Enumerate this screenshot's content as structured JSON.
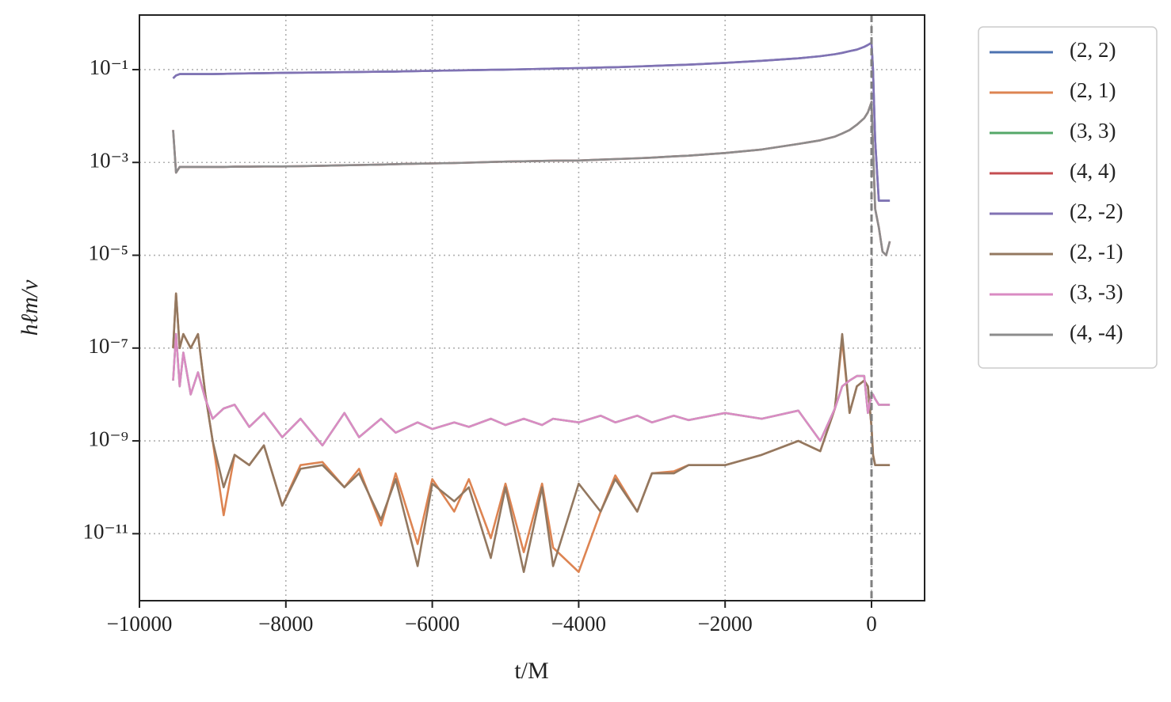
{
  "chart_data": {
    "type": "line",
    "xlabel": "t/M",
    "ylabel": "hℓm/ν",
    "x": [
      -9540,
      -9500,
      -9450,
      -9400,
      -9300,
      -9200,
      -9100,
      -9000,
      -8850,
      -8700,
      -8500,
      -8300,
      -8050,
      -7800,
      -7500,
      -7200,
      -7000,
      -6700,
      -6500,
      -6200,
      -6000,
      -5700,
      -5500,
      -5200,
      -5000,
      -4750,
      -4500,
      -4350,
      -4000,
      -3700,
      -3500,
      -3200,
      -3000,
      -2700,
      -2500,
      -2000,
      -1500,
      -1000,
      -700,
      -500,
      -400,
      -300,
      -200,
      -100,
      -50,
      0,
      20,
      50,
      100,
      150,
      200,
      250
    ],
    "series": [
      {
        "name": "(2, 2)",
        "color": "#4c72b0",
        "values": [
          0.065,
          0.075,
          0.08,
          0.08,
          0.08,
          0.08,
          0.08,
          0.08,
          0.081,
          0.082,
          0.083,
          0.084,
          0.085,
          0.086,
          0.087,
          0.088,
          0.089,
          0.09,
          0.091,
          0.093,
          0.094,
          0.096,
          0.097,
          0.099,
          0.1,
          0.102,
          0.104,
          0.105,
          0.108,
          0.111,
          0.113,
          0.117,
          0.12,
          0.125,
          0.128,
          0.14,
          0.155,
          0.175,
          0.195,
          0.215,
          0.23,
          0.25,
          0.27,
          0.31,
          0.34,
          0.38,
          0.1,
          0.003,
          0.00015,
          0.00015,
          0.00015,
          0.00015
        ]
      },
      {
        "name": "(2, 1)",
        "color": "#dd8452",
        "values": [
          1e-07,
          1.5e-06,
          1e-07,
          2e-07,
          1e-07,
          2e-07,
          1e-08,
          1e-09,
          2.5e-11,
          5e-10,
          3e-10,
          8e-10,
          4e-11,
          3e-10,
          3.5e-10,
          1e-10,
          2.5e-10,
          1.5e-11,
          2e-10,
          6e-12,
          1.5e-10,
          3e-11,
          1.5e-10,
          8e-12,
          1.2e-10,
          4e-12,
          1.2e-10,
          5e-12,
          1.5e-12,
          3e-11,
          1.8e-10,
          3e-11,
          2e-10,
          2.2e-10,
          3e-10,
          3e-10,
          5e-10,
          1e-09,
          6e-10,
          5e-09,
          1.5e-07,
          4e-09,
          1.5e-08,
          2e-08,
          1.5e-08,
          2e-09,
          5e-10,
          3e-10,
          3e-10,
          3e-10,
          3e-10,
          3e-10
        ]
      },
      {
        "name": "(3, 3)",
        "color": "#55a868",
        "values": [
          2e-08,
          2e-07,
          1.5e-08,
          8e-08,
          1e-08,
          3e-08,
          8e-09,
          3e-09,
          5e-09,
          6e-09,
          2e-09,
          4e-09,
          1.2e-09,
          3e-09,
          8e-10,
          4e-09,
          1.2e-09,
          3e-09,
          1.5e-09,
          2.5e-09,
          1.8e-09,
          2.5e-09,
          2e-09,
          3e-09,
          2.2e-09,
          3e-09,
          2.2e-09,
          3e-09,
          2.5e-09,
          3.5e-09,
          2.5e-09,
          3.5e-09,
          2.5e-09,
          3.5e-09,
          2.8e-09,
          4e-09,
          3e-09,
          4.5e-09,
          1e-09,
          5e-09,
          1.5e-08,
          2e-08,
          2.5e-08,
          2.5e-08,
          4e-09,
          1e-08,
          1e-08,
          8e-09,
          6e-09,
          6e-09,
          6e-09,
          6e-09
        ]
      },
      {
        "name": "(4, 4)",
        "color": "#c44e52",
        "values": [
          0.005,
          0.0006,
          0.0008,
          0.0008,
          0.0008,
          0.0008,
          0.0008,
          0.0008,
          0.0008,
          0.00081,
          0.00081,
          0.00082,
          0.00082,
          0.00083,
          0.00085,
          0.00087,
          0.00088,
          0.0009,
          0.00092,
          0.00094,
          0.00095,
          0.00097,
          0.00099,
          0.00102,
          0.00104,
          0.00106,
          0.00108,
          0.00109,
          0.0011,
          0.00115,
          0.00118,
          0.00123,
          0.00127,
          0.00135,
          0.0014,
          0.0016,
          0.0019,
          0.0025,
          0.003,
          0.0036,
          0.0042,
          0.005,
          0.0065,
          0.009,
          0.012,
          0.02,
          0.002,
          0.0001,
          4e-05,
          1.2e-05,
          1e-05,
          2e-05
        ]
      },
      {
        "name": "(2, -2)",
        "color": "#8172b3",
        "values": [
          0.065,
          0.075,
          0.08,
          0.08,
          0.08,
          0.08,
          0.08,
          0.08,
          0.081,
          0.082,
          0.083,
          0.084,
          0.085,
          0.086,
          0.087,
          0.088,
          0.089,
          0.09,
          0.091,
          0.093,
          0.094,
          0.096,
          0.097,
          0.099,
          0.1,
          0.102,
          0.104,
          0.105,
          0.108,
          0.111,
          0.113,
          0.117,
          0.12,
          0.125,
          0.128,
          0.14,
          0.155,
          0.175,
          0.195,
          0.215,
          0.23,
          0.25,
          0.27,
          0.31,
          0.34,
          0.38,
          0.1,
          0.003,
          0.00015,
          0.00015,
          0.00015,
          0.00015
        ]
      },
      {
        "name": "(2, -1)",
        "color": "#937860",
        "values": [
          1e-07,
          1.5e-06,
          1e-07,
          2e-07,
          1e-07,
          2e-07,
          1e-08,
          1e-09,
          1e-10,
          5e-10,
          3e-10,
          8e-10,
          4e-11,
          2.5e-10,
          3e-10,
          1e-10,
          2e-10,
          2e-11,
          1.5e-10,
          2e-12,
          1.2e-10,
          5e-11,
          1e-10,
          3e-12,
          1e-10,
          1.5e-12,
          1e-10,
          2e-12,
          1.2e-10,
          3e-11,
          1.5e-10,
          3e-11,
          2e-10,
          2e-10,
          3e-10,
          3e-10,
          5e-10,
          1e-09,
          6e-10,
          5e-09,
          2e-07,
          4e-09,
          1.5e-08,
          2e-08,
          1.5e-08,
          2e-09,
          5e-10,
          3e-10,
          3e-10,
          3e-10,
          3e-10,
          3e-10
        ]
      },
      {
        "name": "(3, -3)",
        "color": "#da8bc3",
        "values": [
          2e-08,
          2e-07,
          1.5e-08,
          8e-08,
          1e-08,
          3e-08,
          8e-09,
          3e-09,
          5e-09,
          6e-09,
          2e-09,
          4e-09,
          1.2e-09,
          3e-09,
          8e-10,
          4e-09,
          1.2e-09,
          3e-09,
          1.5e-09,
          2.5e-09,
          1.8e-09,
          2.5e-09,
          2e-09,
          3e-09,
          2.2e-09,
          3e-09,
          2.2e-09,
          3e-09,
          2.5e-09,
          3.5e-09,
          2.5e-09,
          3.5e-09,
          2.5e-09,
          3.5e-09,
          2.8e-09,
          4e-09,
          3e-09,
          4.5e-09,
          1e-09,
          5e-09,
          1.5e-08,
          2e-08,
          2.5e-08,
          2.5e-08,
          4e-09,
          1e-08,
          1e-08,
          8e-09,
          6e-09,
          6e-09,
          6e-09,
          6e-09
        ]
      },
      {
        "name": "(4, -4)",
        "color": "#8c8c8c",
        "values": [
          0.005,
          0.0006,
          0.0008,
          0.0008,
          0.0008,
          0.0008,
          0.0008,
          0.0008,
          0.0008,
          0.00081,
          0.00081,
          0.00082,
          0.00082,
          0.00083,
          0.00085,
          0.00087,
          0.00088,
          0.0009,
          0.00092,
          0.00094,
          0.00095,
          0.00097,
          0.00099,
          0.00102,
          0.00104,
          0.00106,
          0.00108,
          0.00109,
          0.0011,
          0.00115,
          0.00118,
          0.00123,
          0.00127,
          0.00135,
          0.0014,
          0.0016,
          0.0019,
          0.0025,
          0.003,
          0.0036,
          0.0042,
          0.005,
          0.0065,
          0.009,
          0.012,
          0.02,
          0.002,
          0.0001,
          4e-05,
          1.2e-05,
          1e-05,
          2e-05
        ]
      }
    ],
    "xlim": [
      -10000,
      725
    ],
    "xticks": [
      {
        "value": -10000,
        "label": "−10000"
      },
      {
        "value": -8000,
        "label": "−8000"
      },
      {
        "value": -6000,
        "label": "−6000"
      },
      {
        "value": -4000,
        "label": "−4000"
      },
      {
        "value": -2000,
        "label": "−2000"
      },
      0
    ],
    "ylim": [
      3.6e-13,
      1.5
    ],
    "yticks": [
      {
        "value": 0.1,
        "label": "10⁻¹"
      },
      {
        "value": 0.001,
        "label": "10⁻³"
      },
      {
        "value": 1e-05,
        "label": "10⁻⁵"
      },
      {
        "value": 1e-07,
        "label": "10⁻⁷"
      },
      {
        "value": 1e-09,
        "label": "10⁻⁹"
      },
      {
        "value": 1e-11,
        "label": "10⁻¹¹"
      }
    ],
    "yscale": "log",
    "grid": true,
    "legend": "outside right",
    "axvline": 0
  }
}
